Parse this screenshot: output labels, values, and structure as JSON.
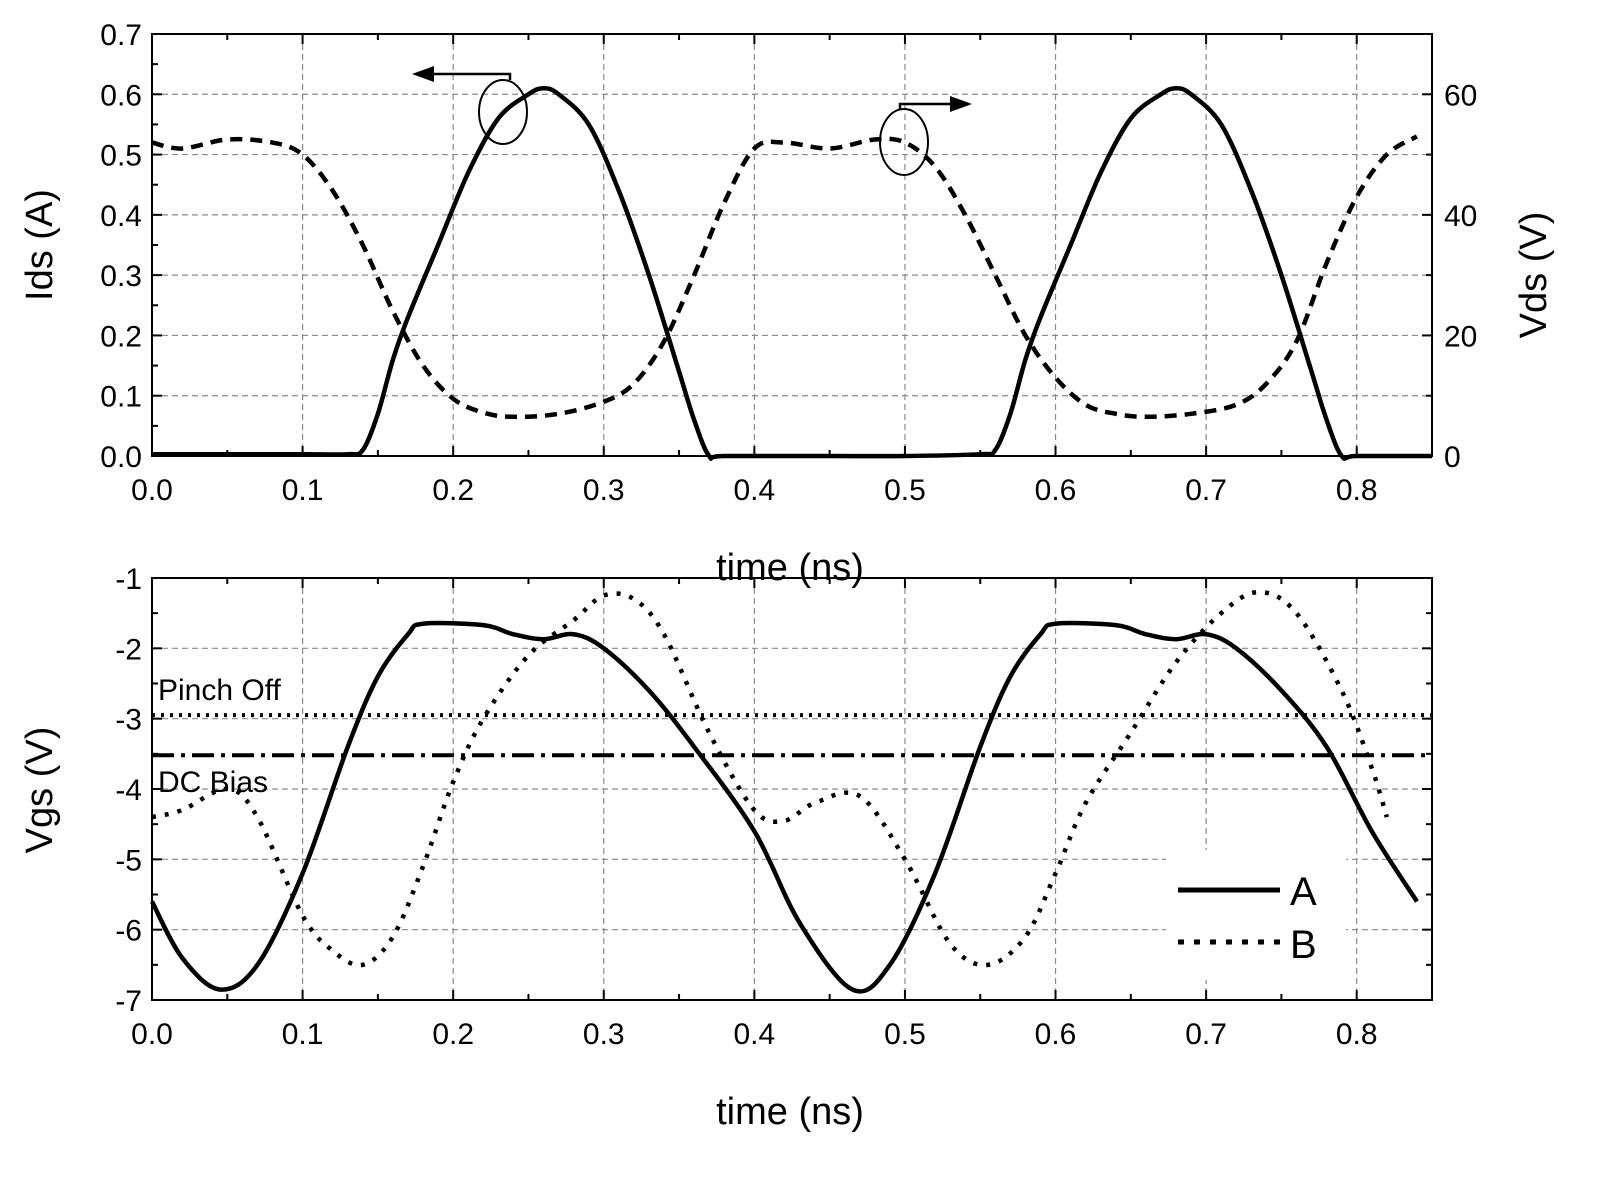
{
  "chart_data": [
    {
      "type": "line",
      "panel": "top",
      "xlabel": "time (ns)",
      "ylabel": "Ids (A)",
      "y2label": "Vds (V)",
      "xlim": [
        0,
        0.85
      ],
      "ylim": [
        0,
        0.7
      ],
      "y2lim": [
        0,
        70
      ],
      "xticks": [
        "0.0",
        "0.1",
        "0.2",
        "0.3",
        "0.4",
        "0.5",
        "0.6",
        "0.7",
        "0.8"
      ],
      "yticks": [
        "0.0",
        "0.1",
        "0.2",
        "0.3",
        "0.4",
        "0.5",
        "0.6",
        "0.7"
      ],
      "y2ticks": [
        "0",
        "20",
        "40",
        "60"
      ],
      "grid": true,
      "series": [
        {
          "name": "Ids",
          "axis": "left",
          "style": "solid",
          "x": [
            0.0,
            0.05,
            0.1,
            0.13,
            0.14,
            0.15,
            0.16,
            0.17,
            0.19,
            0.21,
            0.23,
            0.25,
            0.26,
            0.27,
            0.29,
            0.31,
            0.33,
            0.35,
            0.36,
            0.37,
            0.38,
            0.45,
            0.5,
            0.55,
            0.56,
            0.57,
            0.58,
            0.59,
            0.61,
            0.63,
            0.65,
            0.67,
            0.68,
            0.69,
            0.71,
            0.73,
            0.75,
            0.77,
            0.78,
            0.79,
            0.8,
            0.85
          ],
          "y": [
            0.003,
            0.003,
            0.003,
            0.003,
            0.01,
            0.07,
            0.16,
            0.23,
            0.35,
            0.47,
            0.56,
            0.6,
            0.61,
            0.6,
            0.55,
            0.44,
            0.3,
            0.14,
            0.06,
            0.0,
            0.0,
            0.0,
            0.0,
            0.003,
            0.01,
            0.07,
            0.16,
            0.23,
            0.35,
            0.47,
            0.56,
            0.6,
            0.61,
            0.6,
            0.55,
            0.44,
            0.3,
            0.14,
            0.06,
            0.0,
            0.0,
            0.0
          ]
        },
        {
          "name": "Vds",
          "axis": "right",
          "style": "dashed",
          "x": [
            0.0,
            0.02,
            0.05,
            0.08,
            0.1,
            0.12,
            0.14,
            0.16,
            0.18,
            0.2,
            0.22,
            0.24,
            0.27,
            0.3,
            0.32,
            0.34,
            0.36,
            0.38,
            0.4,
            0.42,
            0.45,
            0.48,
            0.5,
            0.52,
            0.54,
            0.56,
            0.58,
            0.6,
            0.62,
            0.64,
            0.66,
            0.69,
            0.72,
            0.74,
            0.76,
            0.78,
            0.8,
            0.82,
            0.84
          ],
          "y": [
            52,
            51,
            52.5,
            52,
            50,
            44,
            35,
            24,
            15,
            9.5,
            7.2,
            6.5,
            7,
            9,
            12,
            19,
            30,
            42,
            51,
            52,
            51,
            52.5,
            52,
            48,
            40,
            30,
            20,
            13,
            8.5,
            7,
            6.5,
            7,
            8.5,
            12,
            19,
            32,
            43,
            50,
            53
          ]
        }
      ],
      "annotations": [
        {
          "text": "arrow toward Ids axis",
          "target": "Ids"
        },
        {
          "text": "arrow toward Vds axis",
          "target": "Vds"
        }
      ]
    },
    {
      "type": "line",
      "panel": "bottom",
      "xlabel": "time (ns)",
      "ylabel": "Vgs (V)",
      "xlim": [
        0,
        0.85
      ],
      "ylim": [
        -7,
        -1
      ],
      "xticks": [
        "0.0",
        "0.1",
        "0.2",
        "0.3",
        "0.4",
        "0.5",
        "0.6",
        "0.7",
        "0.8"
      ],
      "yticks": [
        "-7",
        "-6",
        "-5",
        "-4",
        "-3",
        "-2",
        "-1"
      ],
      "grid": true,
      "legend_position": "bottom-right",
      "series": [
        {
          "name": "A",
          "style": "solid",
          "x": [
            0.0,
            0.02,
            0.045,
            0.07,
            0.1,
            0.13,
            0.15,
            0.17,
            0.18,
            0.22,
            0.24,
            0.26,
            0.28,
            0.3,
            0.33,
            0.36,
            0.4,
            0.43,
            0.465,
            0.49,
            0.52,
            0.55,
            0.57,
            0.59,
            0.6,
            0.64,
            0.66,
            0.68,
            0.7,
            0.72,
            0.75,
            0.78,
            0.81,
            0.84
          ],
          "y": [
            -5.6,
            -6.4,
            -6.85,
            -6.5,
            -5.2,
            -3.4,
            -2.4,
            -1.8,
            -1.65,
            -1.67,
            -1.8,
            -1.87,
            -1.8,
            -2.0,
            -2.6,
            -3.4,
            -4.6,
            -5.9,
            -6.85,
            -6.5,
            -5.2,
            -3.4,
            -2.4,
            -1.8,
            -1.65,
            -1.67,
            -1.8,
            -1.87,
            -1.8,
            -2.0,
            -2.6,
            -3.4,
            -4.6,
            -5.6
          ]
        },
        {
          "name": "B",
          "style": "dotted",
          "x": [
            0.0,
            0.02,
            0.05,
            0.07,
            0.1,
            0.12,
            0.14,
            0.16,
            0.18,
            0.2,
            0.22,
            0.25,
            0.28,
            0.3,
            0.32,
            0.34,
            0.37,
            0.4,
            0.42,
            0.44,
            0.47,
            0.5,
            0.53,
            0.555,
            0.58,
            0.6,
            0.62,
            0.65,
            0.68,
            0.71,
            0.735,
            0.76,
            0.79,
            0.81,
            0.82
          ],
          "y": [
            -4.4,
            -4.3,
            -4.0,
            -4.4,
            -5.8,
            -6.3,
            -6.5,
            -6.1,
            -5.1,
            -3.9,
            -3.0,
            -2.1,
            -1.6,
            -1.25,
            -1.3,
            -1.8,
            -3.2,
            -4.3,
            -4.45,
            -4.2,
            -4.1,
            -5.0,
            -6.2,
            -6.5,
            -6.1,
            -5.2,
            -4.2,
            -3.2,
            -2.2,
            -1.5,
            -1.2,
            -1.5,
            -2.6,
            -3.7,
            -4.4
          ]
        }
      ],
      "reference_lines": [
        {
          "label": "Pinch Off",
          "value": -2.95,
          "style": "dotted"
        },
        {
          "label": "DC Bias",
          "value": -3.52,
          "style": "dash-dot"
        }
      ]
    }
  ]
}
